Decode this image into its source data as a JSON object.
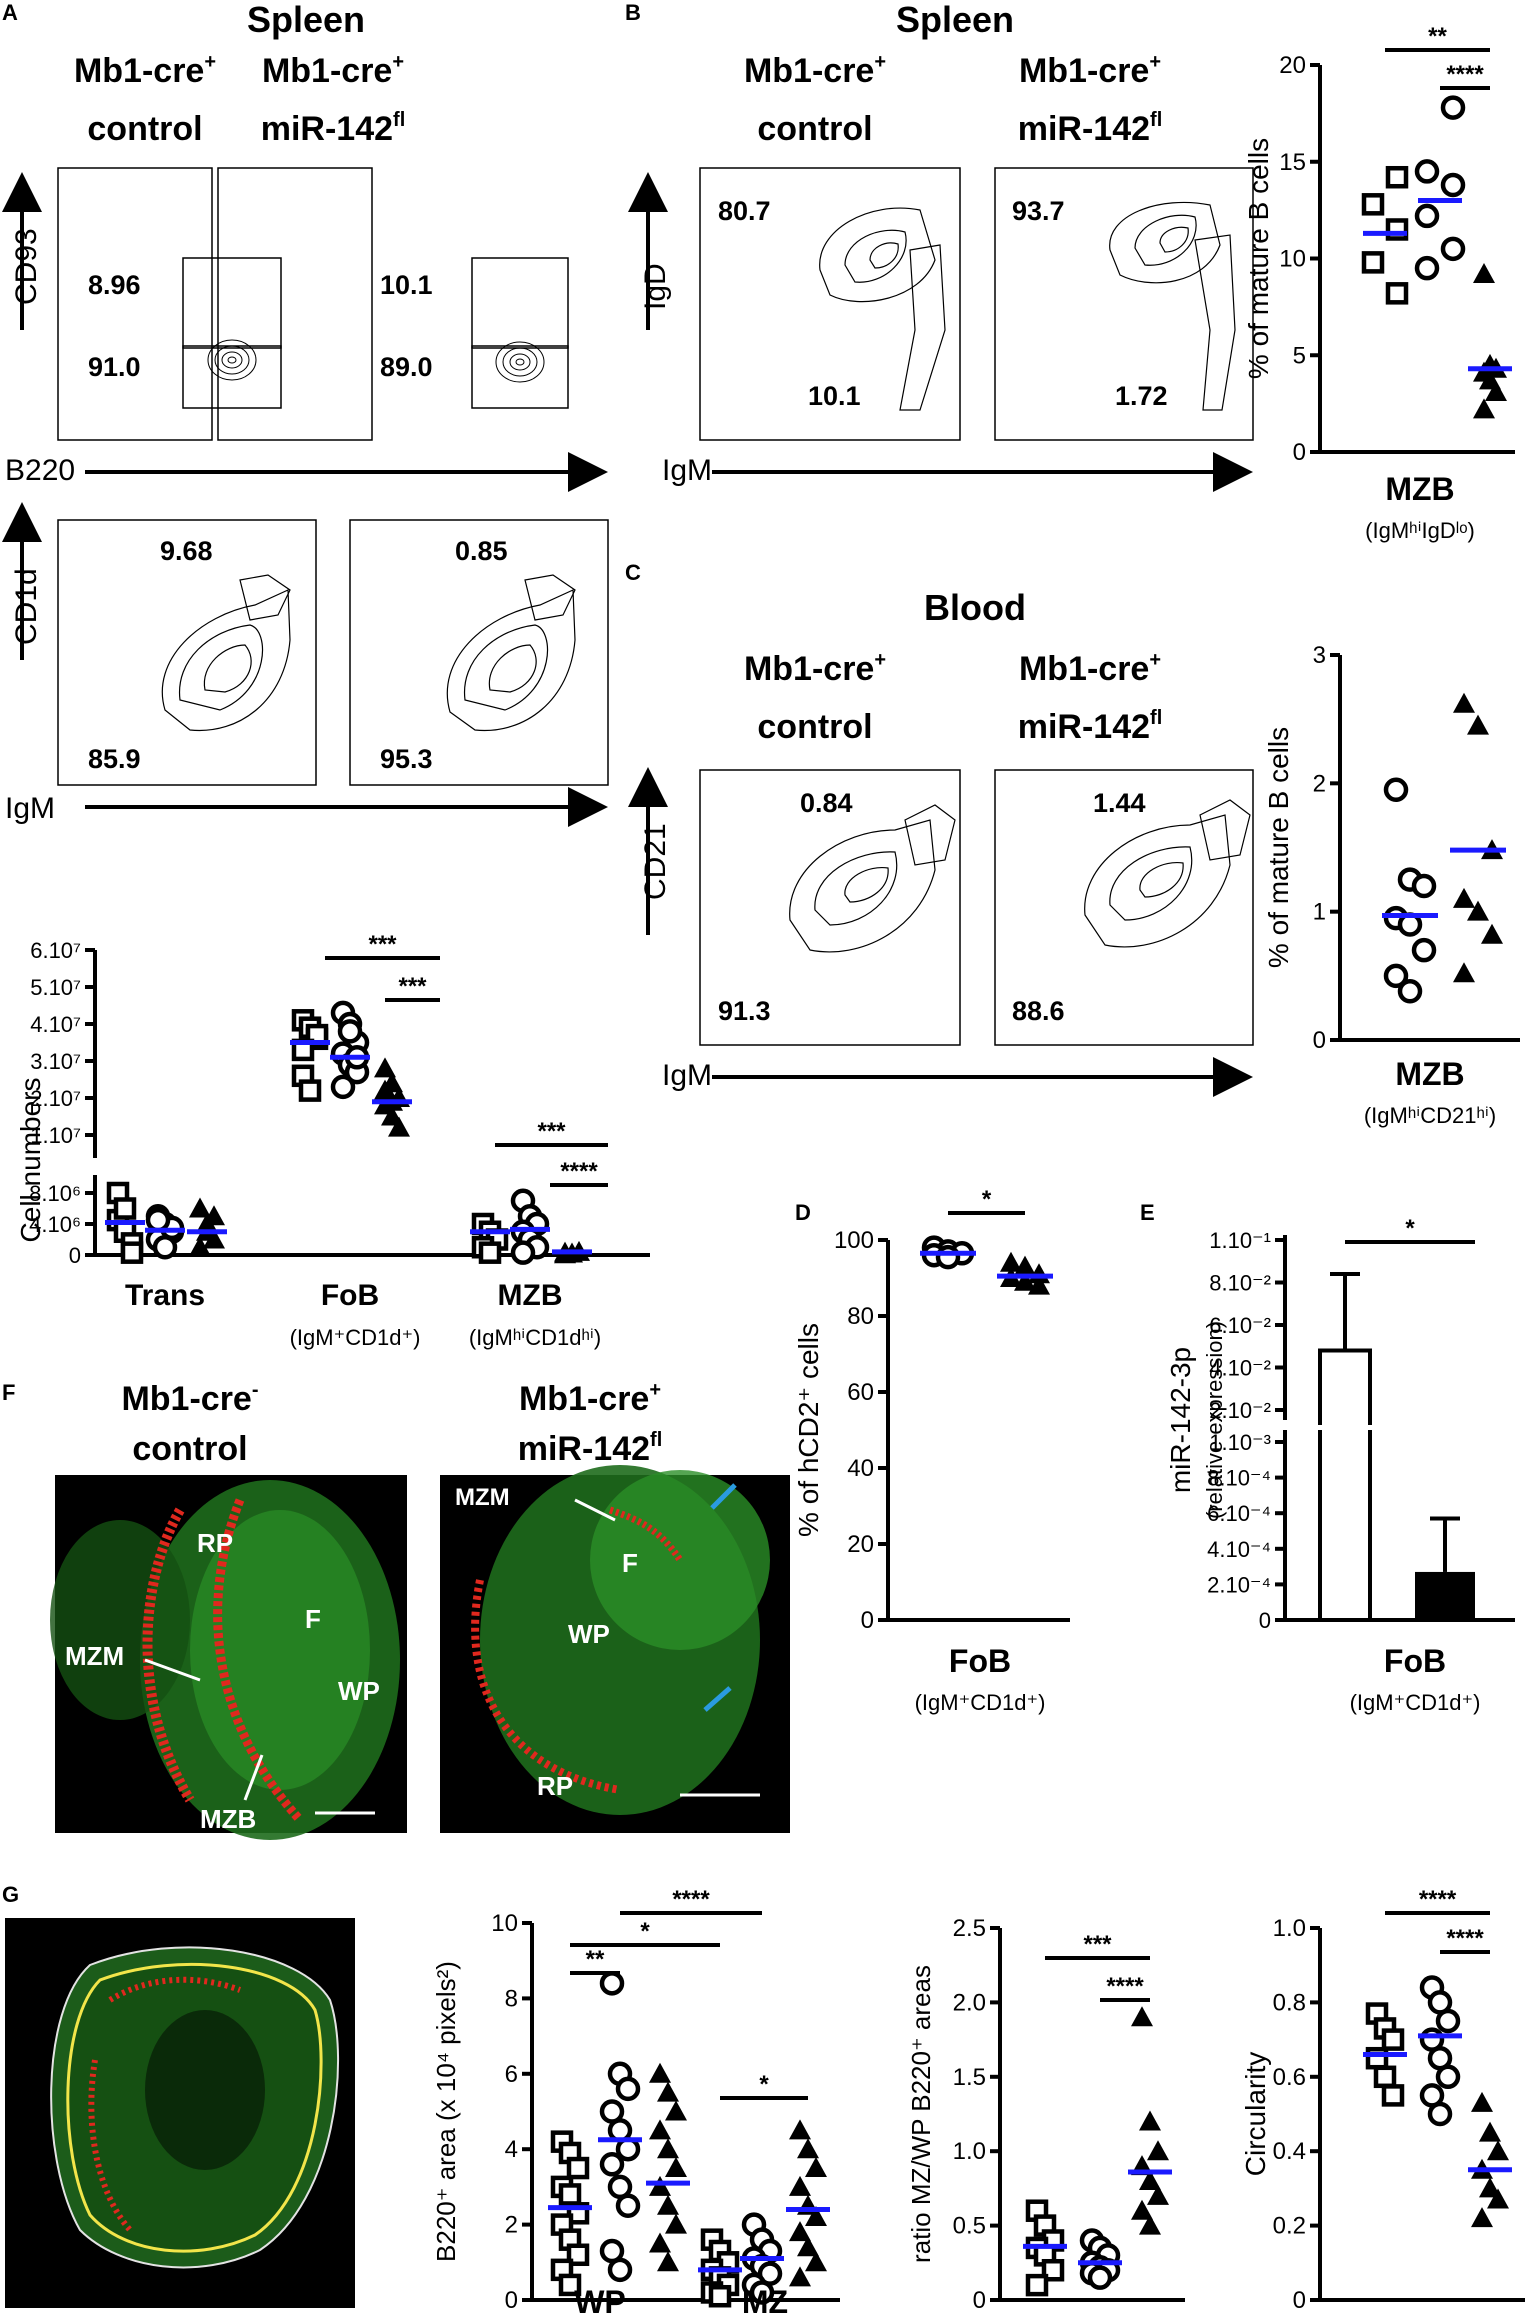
{
  "panel_letters": {
    "A": "A",
    "B": "B",
    "C": "C",
    "D": "D",
    "E": "E",
    "F": "F",
    "G": "G"
  },
  "panelA": {
    "tissue": "Spleen",
    "col1": {
      "l1": "Mb1-cre",
      "sup1": "+",
      "l2": "control"
    },
    "col2": {
      "l1": "Mb1-cre",
      "sup1": "+",
      "l2": "miR-142",
      "sup2": "fl"
    },
    "plot1": {
      "xlabel": "B220",
      "ylabel": "CD93",
      "ctrl_top": "8.96",
      "ctrl_bot": "91.0",
      "ko_top": "10.1",
      "ko_bot": "89.0"
    },
    "plot2": {
      "xlabel": "IgM",
      "ylabel": "CD1d",
      "ctrl_top": "9.68",
      "ctrl_bot": "85.9",
      "ko_top": "0.85",
      "ko_bot": "95.3"
    },
    "ticks_x": [
      "-10³",
      "0",
      "10³",
      "10⁴",
      "10⁵"
    ],
    "ticks_y": [
      "10⁵",
      "10⁴",
      "10³",
      "0",
      "-10³"
    ]
  },
  "panelB": {
    "tissue": "Spleen",
    "xlabel": "IgM",
    "ylabel": "IgD",
    "ctrl_top": "80.7",
    "ctrl_bot": "10.1",
    "ko_top": "93.7",
    "ko_bot": "1.72",
    "scatter_title": "MZB",
    "scatter_sub": "(IgMʰⁱIgDˡᵒ)"
  },
  "panelC": {
    "tissue": "Blood",
    "xlabel": "IgM",
    "ylabel": "CD21",
    "ctrl_top": "0.84",
    "ctrl_bot": "91.3",
    "ko_top": "1.44",
    "ko_bot": "88.6",
    "scatter_title": "MZB",
    "scatter_sub": "(IgMʰⁱCD21ʰⁱ)"
  },
  "panelD": {
    "title": "FoB",
    "sub": "(IgM⁺CD1d⁺)",
    "ylabel": "% of hCD2⁺ cells",
    "sig": "*"
  },
  "panelE": {
    "title": "FoB",
    "sub": "(IgM⁺CD1d⁺)",
    "ylabel1": "miR-142-3p",
    "ylabel2": "(relative expression)",
    "sig": "*"
  },
  "panelF": {
    "col1": {
      "l1": "Mb1-cre",
      "sup1": "-",
      "l2": "control"
    },
    "col2": {
      "l1": "Mb1-cre",
      "sup1": "+",
      "l2": "miR-142",
      "sup2": "fl"
    },
    "labels1": [
      "RP",
      "MZM",
      "F",
      "WP",
      "MZB"
    ],
    "labels2": [
      "MZM",
      "F",
      "WP",
      "RP"
    ]
  },
  "chart_data": [
    {
      "id": "A-counts",
      "type": "scatter",
      "ylabel": "Cell numbers",
      "categories": [
        "Trans",
        "FoB",
        "MZB"
      ],
      "category_subs": [
        "",
        "(IgM⁺CD1d⁺)",
        "(IgMʰⁱCD1dʰⁱ)"
      ],
      "yticks_upper": [
        "1.10⁷",
        "2.10⁷",
        "3.10⁷",
        "4.10⁷",
        "5.10⁷",
        "6.10⁷"
      ],
      "yticks_lower": [
        "0",
        "4.10⁶",
        "8.10⁶"
      ],
      "means": [
        [
          4200000.0,
          3200000.0,
          3000000.0
        ],
        [
          36000000.0,
          32000000.0,
          20000000.0
        ],
        [
          3000000.0,
          3300000.0,
          400000.0
        ]
      ],
      "sig": [
        "***",
        "***",
        "***",
        "****"
      ]
    },
    {
      "id": "B-scatter",
      "type": "scatter",
      "ylabel": "% of mature B cells",
      "ylim": [
        0,
        20
      ],
      "yticks": [
        "0",
        "5",
        "10",
        "15",
        "20"
      ],
      "means": [
        11.3,
        13.0,
        4.3
      ],
      "ctrl_sq": [
        14.2,
        12.8,
        11.5,
        9.8,
        8.2
      ],
      "ctrl_ci": [
        17.8,
        14.5,
        13.8,
        12.2,
        10.5,
        9.5
      ],
      "ko_tri": [
        9.2,
        4.5,
        4.3,
        4.1,
        3.7,
        3.1,
        2.2
      ],
      "sig": [
        "**",
        "****"
      ]
    },
    {
      "id": "C-scatter",
      "type": "scatter",
      "ylabel": "% of mature B cells",
      "ylim": [
        0,
        3
      ],
      "yticks": [
        "0",
        "1",
        "2",
        "3"
      ],
      "means": [
        0.97,
        1.48
      ],
      "ci": [
        1.95,
        1.25,
        1.2,
        0.95,
        0.9,
        0.7,
        0.5,
        0.38
      ],
      "tri": [
        2.62,
        2.45,
        1.48,
        1.1,
        1.0,
        0.82,
        0.52
      ]
    },
    {
      "id": "D-scatter",
      "type": "scatter",
      "ylim": [
        0,
        100
      ],
      "yticks": [
        "0",
        "20",
        "40",
        "60",
        "80",
        "100"
      ],
      "means": [
        96.5,
        90.5
      ],
      "ci": [
        98,
        97,
        96.5,
        96,
        95.5
      ],
      "tri": [
        94,
        93,
        91,
        90,
        89,
        88
      ]
    },
    {
      "id": "E-bar",
      "type": "bar",
      "yticks_upper": [
        "2.10⁻²",
        "4.10⁻²",
        "6.10⁻²",
        "8.10⁻²",
        "1.10⁻¹"
      ],
      "yticks_lower": [
        "0",
        "2.10⁻⁴",
        "4.10⁻⁴",
        "6.10⁻⁴",
        "8.10⁻⁴",
        "1.10⁻³"
      ],
      "values": [
        0.048,
        0.00027
      ],
      "errors": [
        0.036,
        0.0003
      ]
    },
    {
      "id": "G-area",
      "type": "scatter",
      "ylabel": "B220⁺ area (x 10⁴ pixels²)",
      "ylim": [
        0,
        10
      ],
      "yticks": [
        "0",
        "2",
        "4",
        "6",
        "8",
        "10"
      ],
      "categories": [
        "WP",
        "MZ"
      ],
      "means": [
        2.45,
        4.25,
        3.1,
        0.8,
        1.1,
        2.4
      ],
      "sig": [
        "**",
        "*",
        "****",
        "*"
      ]
    },
    {
      "id": "G-ratio",
      "type": "scatter",
      "ylabel": "ratio MZ/WP B220⁺ areas",
      "ylim": [
        0,
        2.5
      ],
      "yticks": [
        "0",
        "0.5",
        "1.0",
        "1.5",
        "2.0",
        "2.5"
      ],
      "means": [
        0.36,
        0.25,
        0.86
      ],
      "sig": [
        "***",
        "****"
      ]
    },
    {
      "id": "G-circ",
      "type": "scatter",
      "ylabel": "Circularity",
      "ylim": [
        0,
        1.0
      ],
      "yticks": [
        "0",
        "0.2",
        "0.4",
        "0.6",
        "0.8",
        "1.0"
      ],
      "means": [
        0.66,
        0.71,
        0.35
      ],
      "sig": [
        "****",
        "****"
      ]
    }
  ],
  "colors": {
    "mean": "#1a1aff",
    "red": "#e0281e",
    "green": "#2fa82a",
    "blue_arrow": "#2a9be0"
  }
}
